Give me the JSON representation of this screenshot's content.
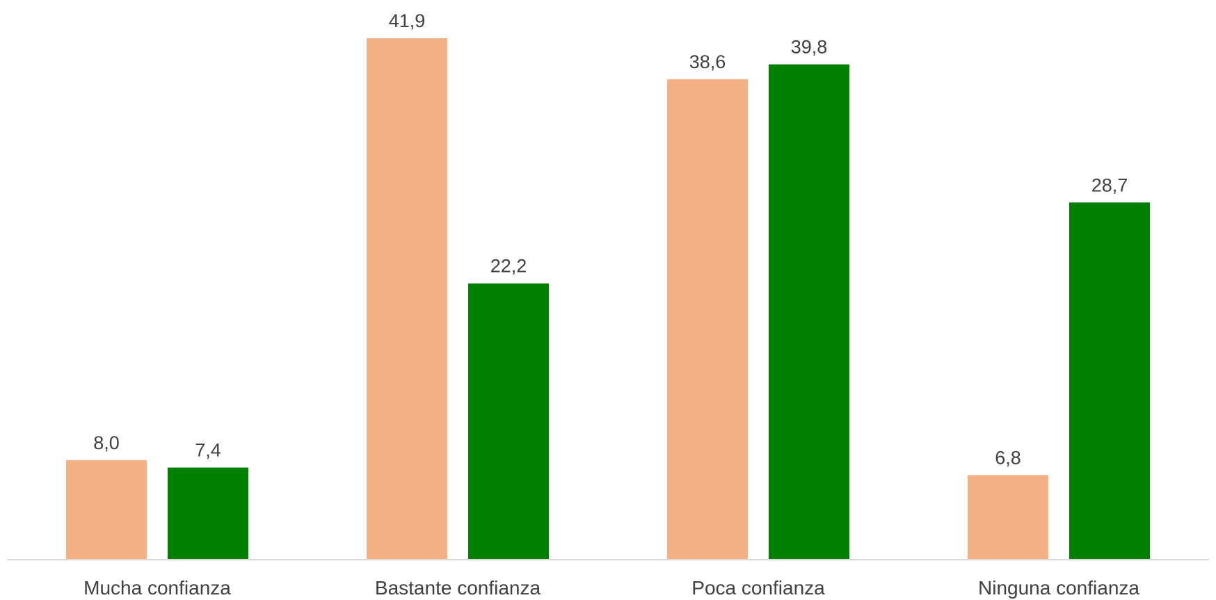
{
  "chart_data": {
    "type": "bar",
    "categories": [
      "Mucha confianza",
      "Bastante confianza",
      "Poca confianza",
      "Ninguna confianza"
    ],
    "series": [
      {
        "values": [
          8.0,
          41.9,
          38.6,
          6.8
        ],
        "labels": [
          "8,0",
          "41,9",
          "38,6",
          "6,8"
        ],
        "color": "#F4B183"
      },
      {
        "values": [
          7.4,
          22.2,
          39.8,
          28.7
        ],
        "labels": [
          "7,4",
          "22,2",
          "39,8",
          "28,7"
        ],
        "color": "#008000"
      }
    ],
    "title": "",
    "xlabel": "",
    "ylabel": "",
    "ylim": [
      0,
      45
    ],
    "grid": false,
    "legend": "none",
    "colors": {
      "axis": "#D9D9D9",
      "text": "#404040"
    }
  }
}
